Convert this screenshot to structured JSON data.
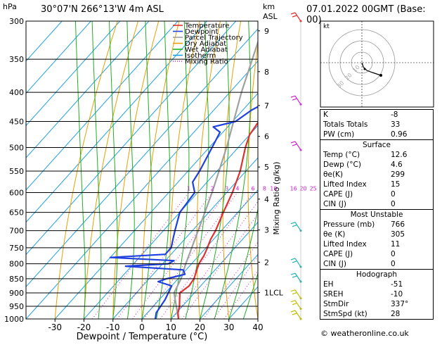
{
  "header": {
    "hpa_label": "hPa",
    "location": "30°07'N  266°13'W  4m  ASL",
    "km_label": "km",
    "asl_label": "ASL",
    "datetime": "07.01.2022  00GMT  (Base: 00)"
  },
  "legend": [
    {
      "label": "Temperature",
      "color": "#e03030"
    },
    {
      "label": "Dewpoint",
      "color": "#2040e0"
    },
    {
      "label": "Parcel Trajectory",
      "color": "#a0a0a0"
    },
    {
      "label": "Dry Adiabat",
      "color": "#e8a000"
    },
    {
      "label": "Wet Adiabat",
      "color": "#20b020"
    },
    {
      "label": "Isotherm",
      "color": "#20a0e0"
    },
    {
      "label": "Mixing Ratio",
      "color": "#d020d0"
    }
  ],
  "chart_data": {
    "type": "skew-t",
    "xlabel": "Dewpoint / Temperature (°C)",
    "ylabel_right": "Mixing Ratio (g/kg)",
    "pressure_ticks": [
      300,
      350,
      400,
      450,
      500,
      550,
      600,
      650,
      700,
      750,
      800,
      850,
      900,
      950,
      1000
    ],
    "temp_ticks": [
      -30,
      -20,
      -10,
      0,
      10,
      20,
      30,
      40
    ],
    "km_ticks": [
      {
        "p": 312,
        "label": "9"
      },
      {
        "p": 368,
        "label": "8"
      },
      {
        "p": 422,
        "label": "7"
      },
      {
        "p": 478,
        "label": "6"
      },
      {
        "p": 541,
        "label": "5"
      },
      {
        "p": 616,
        "label": "4"
      },
      {
        "p": 698,
        "label": "3"
      },
      {
        "p": 795,
        "label": "2"
      },
      {
        "p": 899,
        "label": "1LCL"
      }
    ],
    "mixing_ratio_labels": [
      "1",
      "2",
      "3",
      "4",
      "6",
      "8",
      "10",
      "16",
      "20",
      "25"
    ],
    "temperature": [
      [
        1000,
        12.6
      ],
      [
        975,
        10.5
      ],
      [
        950,
        9
      ],
      [
        925,
        7
      ],
      [
        900,
        5
      ],
      [
        875,
        6
      ],
      [
        850,
        5.5
      ],
      [
        825,
        4
      ],
      [
        800,
        2.5
      ],
      [
        775,
        1.8
      ],
      [
        750,
        0.5
      ],
      [
        725,
        -1
      ],
      [
        700,
        -2
      ],
      [
        650,
        -5
      ],
      [
        600,
        -8
      ],
      [
        550,
        -12
      ],
      [
        500,
        -17.5
      ],
      [
        475,
        -20
      ],
      [
        450,
        -21
      ],
      [
        425,
        -24
      ],
      [
        400,
        -28
      ],
      [
        350,
        -36
      ],
      [
        325,
        -39
      ],
      [
        300,
        -42
      ]
    ],
    "dewpoint": [
      [
        1000,
        4.6
      ],
      [
        975,
        3
      ],
      [
        950,
        2.5
      ],
      [
        925,
        2
      ],
      [
        900,
        1
      ],
      [
        875,
        0
      ],
      [
        860,
        -6
      ],
      [
        850,
        -4
      ],
      [
        835,
        1
      ],
      [
        820,
        -1
      ],
      [
        808,
        -22
      ],
      [
        800,
        -8
      ],
      [
        790,
        -7
      ],
      [
        780,
        -30
      ],
      [
        770,
        -12
      ],
      [
        750,
        -12
      ],
      [
        725,
        -14
      ],
      [
        700,
        -16
      ],
      [
        650,
        -20
      ],
      [
        600,
        -21
      ],
      [
        575,
        -25
      ],
      [
        550,
        -26
      ],
      [
        500,
        -29
      ],
      [
        470,
        -31
      ],
      [
        460,
        -35
      ],
      [
        450,
        -29
      ],
      [
        430,
        -27
      ],
      [
        410,
        -23
      ],
      [
        390,
        -16
      ],
      [
        370,
        -12
      ],
      [
        350,
        -11
      ],
      [
        325,
        -10
      ],
      [
        310,
        -9
      ],
      [
        300,
        -30
      ]
    ],
    "parcel": [
      [
        1000,
        12.6
      ],
      [
        900,
        3
      ],
      [
        850,
        1
      ],
      [
        800,
        -2
      ],
      [
        700,
        -8
      ],
      [
        600,
        -15
      ],
      [
        500,
        -24
      ],
      [
        400,
        -36
      ],
      [
        300,
        -50
      ]
    ],
    "wind_barbs": [
      {
        "p": 300,
        "color": "#e03030"
      },
      {
        "p": 420,
        "color": "#d020d0"
      },
      {
        "p": 505,
        "color": "#d020d0"
      },
      {
        "p": 700,
        "color": "#20b0b0"
      },
      {
        "p": 810,
        "color": "#20b0b0"
      },
      {
        "p": 860,
        "color": "#20b0b0"
      },
      {
        "p": 920,
        "color": "#c0c000"
      },
      {
        "p": 960,
        "color": "#c0c000"
      },
      {
        "p": 1000,
        "color": "#c0c000"
      }
    ]
  },
  "hodograph": {
    "label": "kt",
    "ring_labels": [
      "10",
      "20",
      "30"
    ]
  },
  "indices": [
    {
      "label": "K",
      "value": "-8"
    },
    {
      "label": "Totals Totals",
      "value": "33"
    },
    {
      "label": "PW (cm)",
      "value": "0.96"
    }
  ],
  "surface": {
    "title": "Surface",
    "rows": [
      {
        "label": "Temp (°C)",
        "value": "12.6"
      },
      {
        "label": "Dewp (°C)",
        "value": "4.6"
      },
      {
        "label": "θe(K)",
        "value": "299"
      },
      {
        "label": "Lifted Index",
        "value": "15"
      },
      {
        "label": "CAPE (J)",
        "value": "0"
      },
      {
        "label": "CIN (J)",
        "value": "0"
      }
    ]
  },
  "most_unstable": {
    "title": "Most Unstable",
    "rows": [
      {
        "label": "Pressure (mb)",
        "value": "766"
      },
      {
        "label": "θe (K)",
        "value": "305"
      },
      {
        "label": "Lifted Index",
        "value": "11"
      },
      {
        "label": "CAPE (J)",
        "value": "0"
      },
      {
        "label": "CIN (J)",
        "value": "0"
      }
    ]
  },
  "hodograph_table": {
    "title": "Hodograph",
    "rows": [
      {
        "label": "EH",
        "value": "-51"
      },
      {
        "label": "SREH",
        "value": "-10"
      },
      {
        "label": "StmDir",
        "value": "337°"
      },
      {
        "label": "StmSpd (kt)",
        "value": "28"
      }
    ]
  },
  "copyright": "© weatheronline.co.uk"
}
